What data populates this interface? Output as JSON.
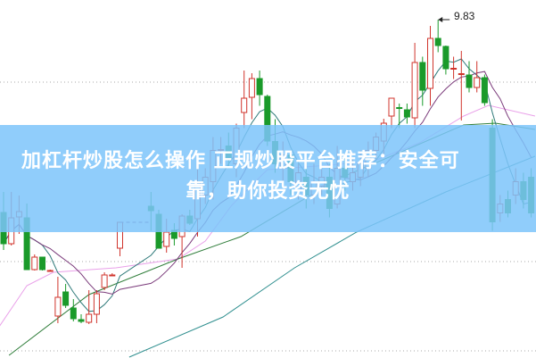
{
  "banner": {
    "line1": "加杠杆炒股怎么操作 正规炒股平台推荐：安全可",
    "line2": "靠，助你投资无忧",
    "color": "#7dc4fa"
  },
  "chart_data": {
    "type": "candlestick",
    "annotation_high": "9.83",
    "grid": "dotted horizontal",
    "colors": {
      "up": "#d0342c",
      "down": "#1a9a2a",
      "ma5": "#2f7a7a",
      "ma10": "#7a3a7a",
      "ma_a": "#e9a0e9",
      "ma_b": "#2f7d3a",
      "ma_c": "#2f8f8f"
    },
    "candles_ohlc": [
      [
        5.51,
        5.97,
        4.67,
        4.81
      ],
      [
        4.81,
        5.97,
        4.77,
        5.39
      ],
      [
        5.41,
        5.89,
        5.03,
        5.53
      ],
      [
        5.39,
        5.71,
        4.23,
        4.23
      ],
      [
        4.23,
        4.57,
        4.21,
        4.51
      ],
      [
        4.51,
        4.51,
        4.21,
        4.23
      ],
      [
        4.21,
        4.23,
        4.19,
        4.21
      ],
      [
        3.19,
        4.07,
        3.03,
        3.61
      ],
      [
        3.73,
        3.91,
        3.37,
        3.43
      ],
      [
        3.37,
        3.57,
        3.07,
        3.13
      ],
      [
        3.11,
        3.23,
        3.03,
        3.07
      ],
      [
        3.05,
        3.77,
        3.01,
        3.23
      ],
      [
        3.23,
        3.77,
        3.03,
        3.69
      ],
      [
        3.83,
        4.17,
        3.77,
        4.11
      ],
      [
        4.11,
        4.15,
        4.09,
        4.11
      ],
      [
        4.71,
        5.29,
        4.53,
        5.29
      ],
      null,
      null,
      null,
      [
        5.65,
        5.97,
        5.1,
        5.55
      ],
      [
        5.47,
        5.57,
        4.71,
        4.71
      ],
      [
        4.75,
        5.37,
        4.61,
        5.07
      ],
      [
        5.11,
        5.27,
        4.77,
        4.93
      ],
      [
        4.97,
        5.47,
        4.27,
        5.43
      ],
      [
        5.43,
        5.57,
        5.23,
        5.27
      ],
      [
        5.37,
        6.47,
        4.97,
        6.17
      ],
      [
        5.9,
        6.5,
        5.7,
        6.3
      ],
      [
        6.2,
        7.2,
        5.8,
        6.9
      ],
      [
        6.9,
        7.2,
        6.6,
        6.92
      ],
      [
        7.0,
        7.3,
        6.5,
        6.7
      ],
      [
        6.6,
        7.5,
        6.3,
        7.4
      ],
      [
        7.75,
        8.69,
        7.4,
        8.07
      ],
      [
        8.09,
        8.63,
        7.6,
        8.51
      ],
      [
        8.51,
        8.69,
        7.9,
        8.15
      ],
      [
        8.11,
        8.15,
        7.0,
        7.11
      ],
      [
        7.1,
        7.6,
        6.4,
        6.6
      ],
      [
        6.5,
        7.1,
        6.2,
        6.8
      ],
      [
        6.8,
        6.9,
        5.9,
        6.2
      ],
      [
        6.0,
        6.6,
        5.8,
        6.4
      ],
      [
        6.3,
        6.5,
        5.6,
        5.9
      ],
      [
        5.9,
        6.6,
        5.7,
        6.2
      ],
      [
        6.1,
        6.5,
        5.9,
        6.3
      ],
      [
        6.3,
        6.6,
        5.4,
        5.6
      ],
      [
        5.7,
        7.0,
        5.6,
        6.5
      ],
      [
        6.5,
        6.8,
        6.0,
        6.3
      ],
      [
        6.2,
        6.7,
        6.0,
        6.4
      ],
      [
        6.3,
        6.9,
        6.1,
        6.6
      ],
      [
        6.5,
        7.1,
        6.3,
        6.9
      ],
      [
        6.9,
        7.3,
        6.7,
        7.2
      ],
      [
        7.11,
        7.61,
        6.8,
        7.51
      ],
      [
        7.67,
        8.07,
        7.4,
        8.07
      ],
      [
        7.86,
        7.95,
        7.4,
        7.85
      ],
      [
        7.81,
        7.95,
        7.5,
        7.65
      ],
      [
        7.63,
        9.31,
        7.4,
        8.87
      ],
      [
        8.87,
        9.0,
        7.9,
        8.25
      ],
      [
        8.29,
        9.69,
        7.9,
        9.41
      ],
      [
        9.41,
        9.83,
        9.1,
        9.25
      ],
      [
        9.23,
        9.25,
        8.6,
        8.73
      ],
      [
        8.72,
        9.0,
        8.5,
        8.74
      ],
      [
        8.6,
        9.13,
        7.57,
        8.62
      ],
      [
        8.59,
        8.9,
        8.2,
        8.31
      ],
      [
        8.31,
        8.9,
        8.2,
        8.53
      ],
      [
        8.53,
        8.6,
        7.9,
        7.97
      ],
      [
        7.4,
        7.6,
        5.1,
        5.3
      ],
      [
        5.5,
        5.9,
        5.3,
        5.7
      ],
      [
        5.8,
        6.0,
        5.4,
        5.5
      ],
      [
        5.9,
        6.5,
        5.7,
        6.2
      ],
      [
        6.2,
        6.4,
        5.6,
        5.8
      ],
      [
        6.3,
        6.5,
        5.4,
        5.5
      ]
    ],
    "ma_a": [
      [
        -0.5,
        2.97
      ],
      [
        3,
        3.87
      ],
      [
        6.4,
        4.17
      ],
      [
        14.5,
        4.27
      ],
      [
        22.5,
        4.47
      ],
      [
        26,
        4.87
      ],
      [
        29.4,
        5.67
      ],
      [
        34,
        6.47
      ],
      [
        42,
        6.57
      ],
      [
        47.8,
        6.67
      ],
      [
        53.6,
        7.07
      ],
      [
        59.3,
        7.67
      ],
      [
        62.5,
        7.91
      ],
      [
        68.5,
        7.67
      ]
    ],
    "ma_b": [
      [
        0.7,
        2.31
      ],
      [
        11,
        3.67
      ],
      [
        22.5,
        4.47
      ],
      [
        30.6,
        4.97
      ],
      [
        43.2,
        6.27
      ],
      [
        51.3,
        6.87
      ],
      [
        59.3,
        7.47
      ],
      [
        63.4,
        7.51
      ],
      [
        68.5,
        7.37
      ]
    ],
    "ma_c": [
      [
        16.2,
        2.27
      ],
      [
        28.3,
        3.17
      ],
      [
        37.5,
        4.27
      ],
      [
        45.5,
        5.07
      ],
      [
        57,
        5.97
      ],
      [
        68.5,
        6.77
      ]
    ]
  }
}
